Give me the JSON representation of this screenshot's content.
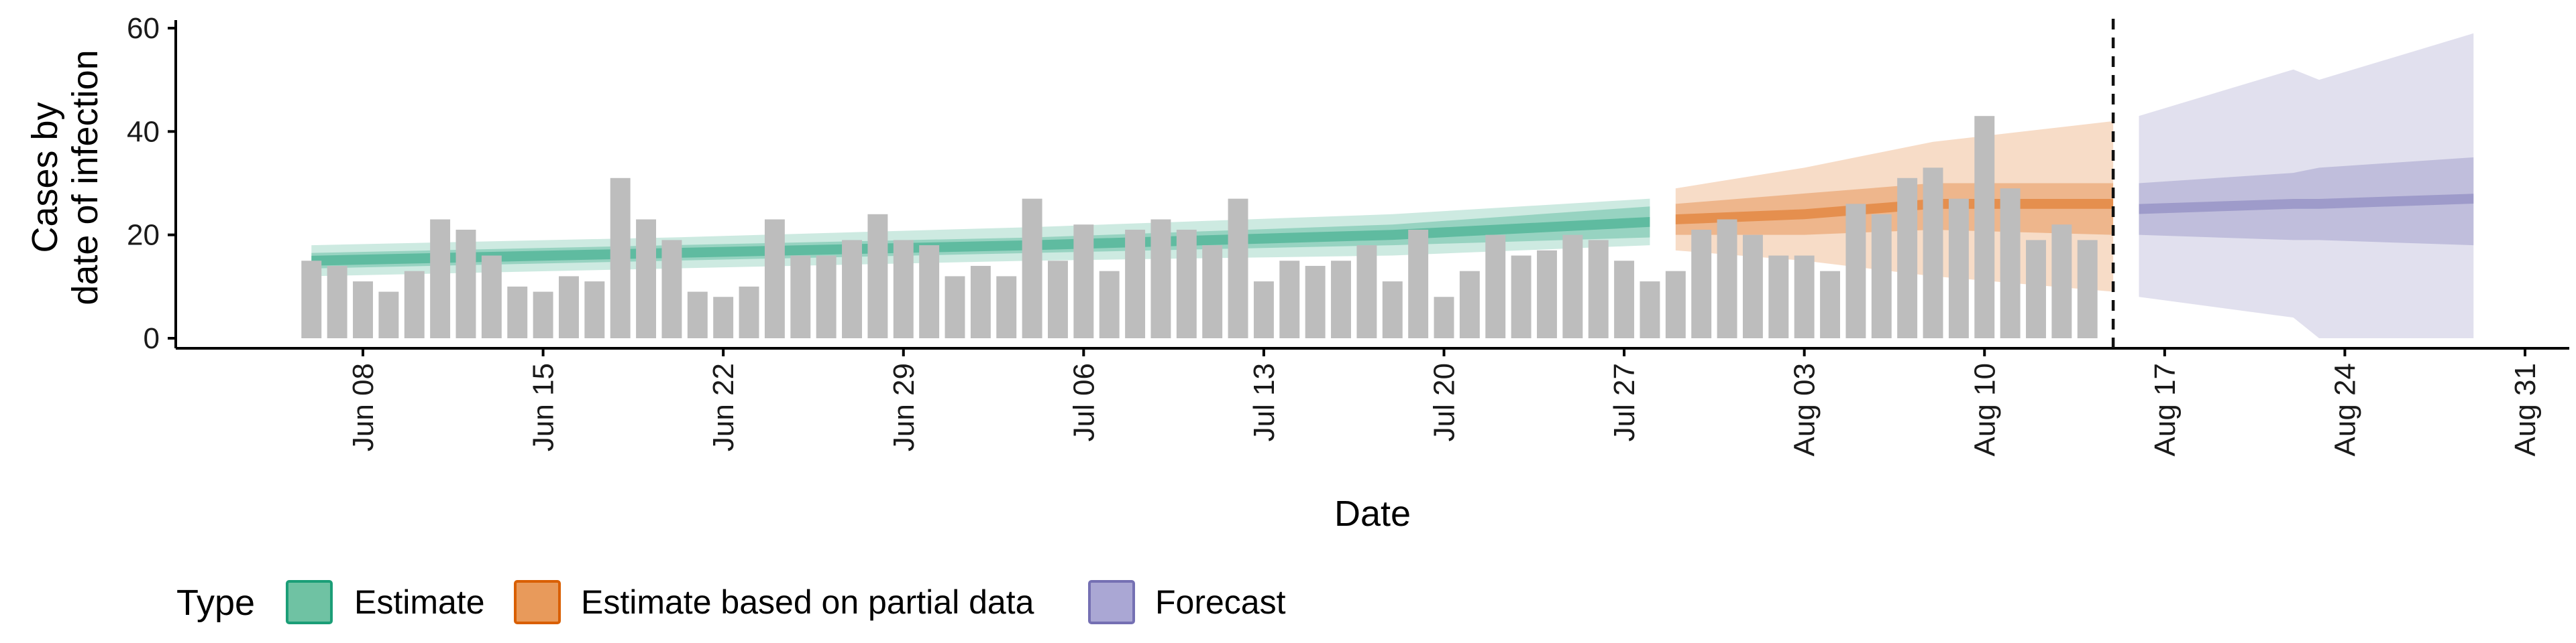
{
  "chart_data": {
    "type": "bar",
    "title": "",
    "xlabel": "Date",
    "ylabel_lines": [
      "Cases by",
      "date of infection"
    ],
    "ylim": [
      0,
      60
    ],
    "y_ticks": [
      0,
      20,
      40,
      60
    ],
    "x_range": [
      "2020-06-01",
      "2020-09-01"
    ],
    "x_ticks": [
      {
        "date": "2020-06-08",
        "label": "Jun 08"
      },
      {
        "date": "2020-06-15",
        "label": "Jun 15"
      },
      {
        "date": "2020-06-22",
        "label": "Jun 22"
      },
      {
        "date": "2020-06-29",
        "label": "Jun 29"
      },
      {
        "date": "2020-07-06",
        "label": "Jul 06"
      },
      {
        "date": "2020-07-13",
        "label": "Jul 13"
      },
      {
        "date": "2020-07-20",
        "label": "Jul 20"
      },
      {
        "date": "2020-07-27",
        "label": "Jul 27"
      },
      {
        "date": "2020-08-03",
        "label": "Aug 03"
      },
      {
        "date": "2020-08-10",
        "label": "Aug 10"
      },
      {
        "date": "2020-08-17",
        "label": "Aug 17"
      },
      {
        "date": "2020-08-24",
        "label": "Aug 24"
      },
      {
        "date": "2020-08-31",
        "label": "Aug 31"
      }
    ],
    "vline_date": "2020-08-15",
    "bars": {
      "start_date": "2020-06-06",
      "color": "#bdbdbd",
      "values": [
        15,
        14,
        11,
        9,
        13,
        23,
        21,
        16,
        10,
        9,
        12,
        11,
        31,
        23,
        19,
        9,
        8,
        10,
        23,
        16,
        16,
        19,
        24,
        19,
        18,
        12,
        14,
        12,
        27,
        15,
        22,
        13,
        21,
        23,
        21,
        18,
        27,
        11,
        15,
        14,
        15,
        18,
        11,
        21,
        8,
        13,
        20,
        16,
        17,
        20,
        19,
        15,
        11,
        13,
        21,
        23,
        20,
        16,
        16,
        13,
        26,
        24,
        31,
        33,
        27,
        43,
        29,
        19,
        22,
        19
      ]
    },
    "series": [
      {
        "name": "Estimate",
        "color": "#1b9e77",
        "x": [
          "2020-06-06",
          "2020-06-20",
          "2020-07-04",
          "2020-07-18",
          "2020-07-28"
        ],
        "median": [
          15,
          16.5,
          18,
          20,
          22.5
        ],
        "inner": [
          [
            13.5,
            16.5
          ],
          [
            15,
            18
          ],
          [
            16.5,
            19.5
          ],
          [
            18,
            22
          ],
          [
            19.5,
            25.5
          ]
        ],
        "outer": [
          [
            12,
            18
          ],
          [
            13.5,
            19.5
          ],
          [
            15,
            21.5
          ],
          [
            16,
            24
          ],
          [
            18,
            27
          ]
        ]
      },
      {
        "name": "Estimate based on partial data",
        "color": "#d95f02",
        "x": [
          "2020-07-29",
          "2020-08-03",
          "2020-08-08",
          "2020-08-15"
        ],
        "median": [
          23,
          24,
          26,
          26
        ],
        "inner": [
          [
            20,
            26
          ],
          [
            20,
            28
          ],
          [
            21,
            30
          ],
          [
            20,
            30
          ]
        ],
        "outer": [
          [
            17,
            29
          ],
          [
            15,
            33
          ],
          [
            12,
            38
          ],
          [
            9,
            42
          ]
        ]
      },
      {
        "name": "Forecast",
        "color": "#7570b3",
        "x": [
          "2020-08-16",
          "2020-08-22",
          "2020-08-23",
          "2020-08-29"
        ],
        "median": [
          25,
          26,
          26,
          27
        ],
        "inner": [
          [
            20,
            30
          ],
          [
            19,
            32
          ],
          [
            19,
            33
          ],
          [
            18,
            35
          ]
        ],
        "outer": [
          [
            8,
            43
          ],
          [
            4,
            52
          ],
          [
            0,
            50
          ],
          [
            0,
            59
          ]
        ]
      }
    ],
    "legend": {
      "title": "Type",
      "position": "bottom",
      "items": [
        {
          "label": "Estimate",
          "fill": "#6fc2a3",
          "stroke": "#1b9e77"
        },
        {
          "label": "Estimate based on partial data",
          "fill": "#e89a5b",
          "stroke": "#d95f02"
        },
        {
          "label": "Forecast",
          "fill": "#aaa7d4",
          "stroke": "#7570b3"
        }
      ]
    },
    "grid": false
  }
}
